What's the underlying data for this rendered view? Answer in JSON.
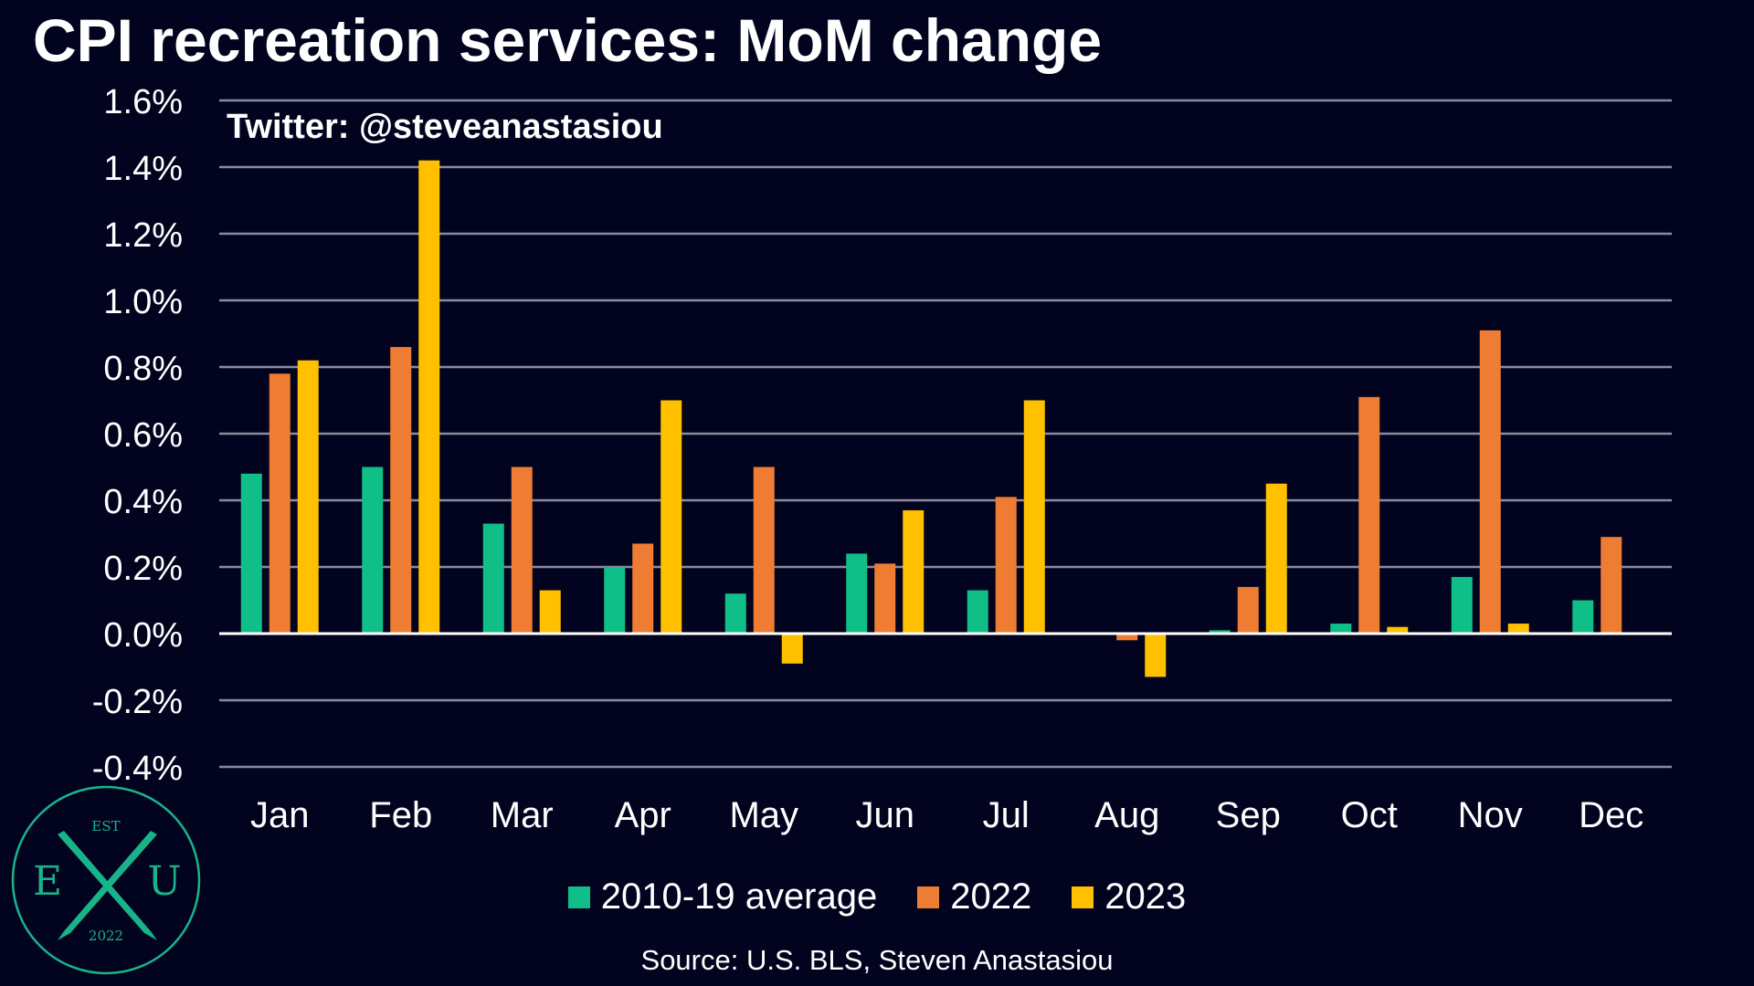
{
  "page": {
    "title": "CPI recreation services: MoM change",
    "watermark": "Twitter: @steveanastasiou",
    "source": "Source: U.S. BLS, Steven Anastasiou",
    "background": "#02031f"
  },
  "logo": {
    "top_text": "EST",
    "left_letter": "E",
    "right_letter": "U",
    "bottom_text": "2022",
    "color": "#19b38a"
  },
  "chart_data": {
    "type": "bar",
    "title": "CPI recreation services: MoM change",
    "xlabel": "",
    "ylabel": "",
    "categories": [
      "Jan",
      "Feb",
      "Mar",
      "Apr",
      "May",
      "Jun",
      "Jul",
      "Aug",
      "Sep",
      "Oct",
      "Nov",
      "Dec"
    ],
    "series": [
      {
        "name": "2010-19 average",
        "color": "#10bf87",
        "values": [
          0.48,
          0.5,
          0.33,
          0.2,
          0.12,
          0.24,
          0.13,
          0.0,
          0.01,
          0.03,
          0.17,
          0.1
        ]
      },
      {
        "name": "2022",
        "color": "#ee7d33",
        "values": [
          0.78,
          0.86,
          0.5,
          0.27,
          0.5,
          0.21,
          0.41,
          -0.02,
          0.14,
          0.71,
          0.91,
          0.29
        ]
      },
      {
        "name": "2023",
        "color": "#ffc000",
        "values": [
          0.82,
          1.42,
          0.13,
          0.7,
          -0.09,
          0.37,
          0.7,
          -0.13,
          0.45,
          0.02,
          0.03,
          null
        ]
      }
    ],
    "ylim": [
      -0.4,
      1.6
    ],
    "yticks": [
      "1.6%",
      "1.4%",
      "1.2%",
      "1.0%",
      "0.8%",
      "0.6%",
      "0.4%",
      "0.2%",
      "0.0%",
      "-0.2%",
      "-0.4%"
    ],
    "grid": true,
    "legend": "bottom"
  }
}
